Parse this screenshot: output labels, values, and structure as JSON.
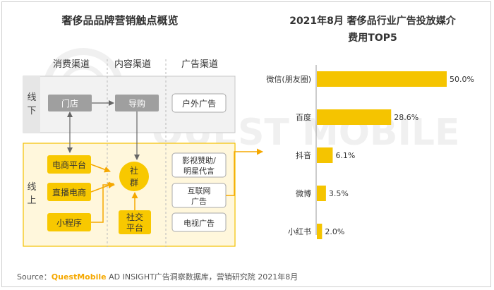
{
  "left_title": "奢侈品品牌营销触点概览",
  "right_title_line1": "2021年8月 奢侈品行业广告投放媒介",
  "right_title_line2": "费用TOP5",
  "columns": {
    "consume": "消费渠道",
    "content": "内容渠道",
    "ad": "广告渠道"
  },
  "offline": {
    "label": "线下",
    "store": "门店",
    "guide": "导购",
    "outdoor": "户外广告"
  },
  "online": {
    "label": "线上",
    "ecommerce": "电商平台",
    "livestream": "直播电商",
    "miniapp": "小程序",
    "community": "社群",
    "social": "社交平台",
    "film": "影视赞助/明星代言",
    "internet": "互联网广告",
    "tv": "电视广告"
  },
  "watermark": "QUEST MOBILE",
  "source": {
    "prefix": "Source：",
    "brand": "QuestMobile",
    "rest": " AD INSIGHT广告洞察数据库，营销研究院 2021年8月"
  },
  "colors": {
    "bar": "#f5c400",
    "offline_fill": "#f2f2f2",
    "online_fill": "#fff7dc",
    "online_border": "#f3c000",
    "node_gray": "#9f9f9f",
    "arrow_orange": "#f5a800"
  },
  "chart_data": {
    "type": "bar",
    "orientation": "horizontal",
    "categories": [
      "微信(朋友圈)",
      "百度",
      "抖音",
      "微博",
      "小红书"
    ],
    "values": [
      50.0,
      28.6,
      6.1,
      3.5,
      2.0
    ],
    "value_labels": [
      "50.0%",
      "28.6%",
      "6.1%",
      "3.5%",
      "2.0%"
    ],
    "title": "2021年8月 奢侈品行业广告投放媒介费用TOP5",
    "xlim": [
      0,
      50
    ],
    "grid": false
  }
}
